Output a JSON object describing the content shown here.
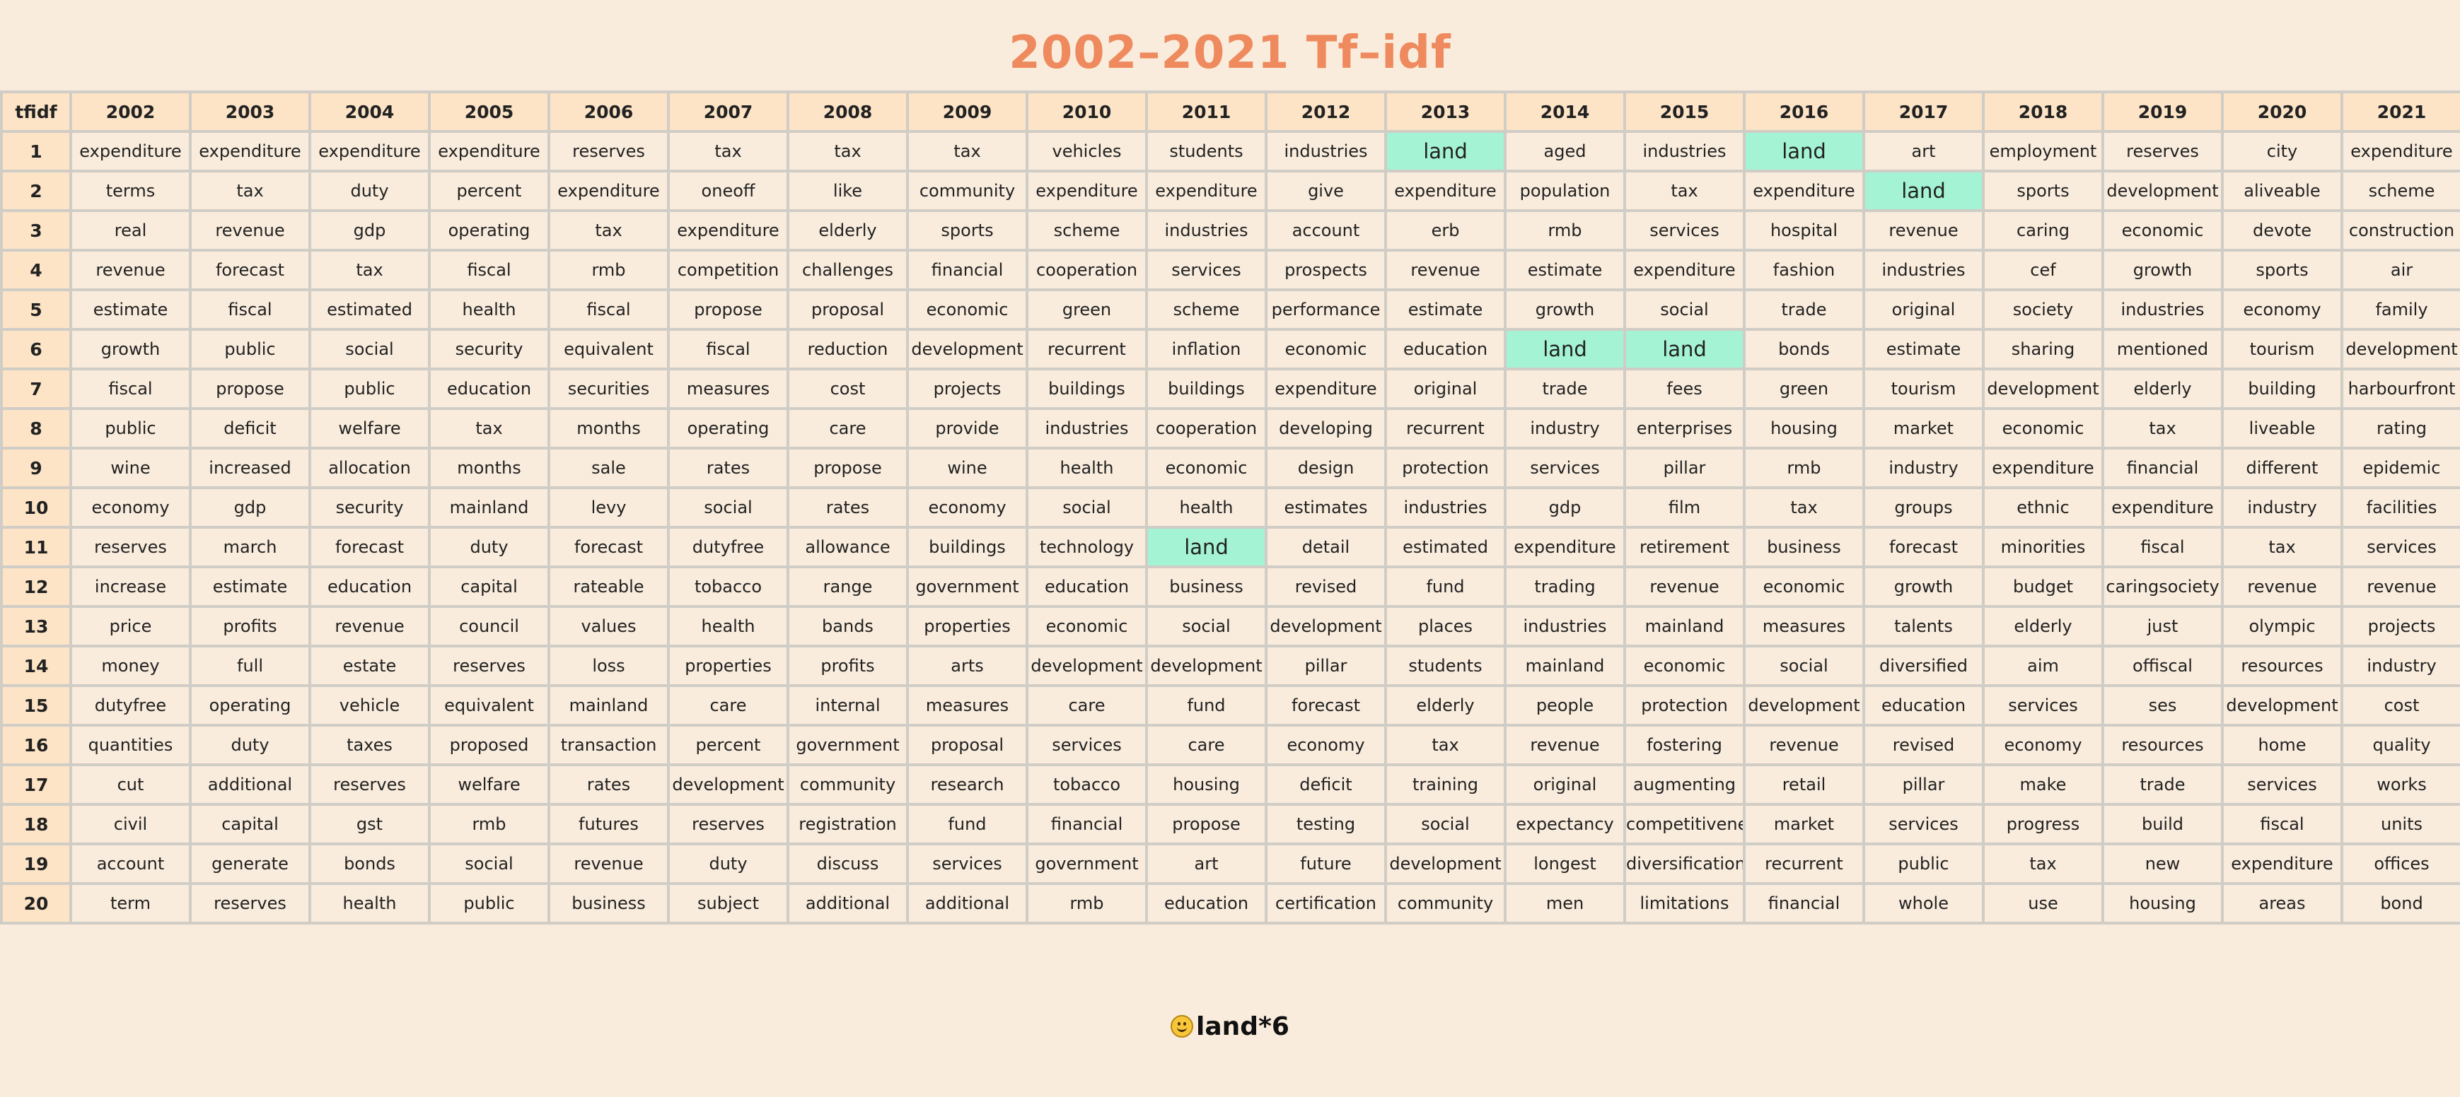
{
  "title": "2002–2021 Tf–idf",
  "table": {
    "corner_header": "tfidf",
    "years": [
      "2002",
      "2003",
      "2004",
      "2005",
      "2006",
      "2007",
      "2008",
      "2009",
      "2010",
      "2011",
      "2012",
      "2013",
      "2014",
      "2015",
      "2016",
      "2017",
      "2018",
      "2019",
      "2020",
      "2021"
    ],
    "highlight_word": "land",
    "highlight_color": "#a4f3d4",
    "rows": [
      {
        "rank": "1",
        "cells": [
          "expenditure",
          "expenditure",
          "expenditure",
          "expenditure",
          "reserves",
          "tax",
          "tax",
          "tax",
          "vehicles",
          "students",
          "industries",
          "land",
          "aged",
          "industries",
          "land",
          "art",
          "employment",
          "reserves",
          "city",
          "expenditure"
        ]
      },
      {
        "rank": "2",
        "cells": [
          "terms",
          "tax",
          "duty",
          "percent",
          "expenditure",
          "oneoff",
          "like",
          "community",
          "expenditure",
          "expenditure",
          "give",
          "expenditure",
          "population",
          "tax",
          "expenditure",
          "land",
          "sports",
          "development",
          "aliveable",
          "scheme"
        ]
      },
      {
        "rank": "3",
        "cells": [
          "real",
          "revenue",
          "gdp",
          "operating",
          "tax",
          "expenditure",
          "elderly",
          "sports",
          "scheme",
          "industries",
          "account",
          "erb",
          "rmb",
          "services",
          "hospital",
          "revenue",
          "caring",
          "economic",
          "devote",
          "construction"
        ]
      },
      {
        "rank": "4",
        "cells": [
          "revenue",
          "forecast",
          "tax",
          "fiscal",
          "rmb",
          "competition",
          "challenges",
          "financial",
          "cooperation",
          "services",
          "prospects",
          "revenue",
          "estimate",
          "expenditure",
          "fashion",
          "industries",
          "cef",
          "growth",
          "sports",
          "air"
        ]
      },
      {
        "rank": "5",
        "cells": [
          "estimate",
          "fiscal",
          "estimated",
          "health",
          "fiscal",
          "propose",
          "proposal",
          "economic",
          "green",
          "scheme",
          "performance",
          "estimate",
          "growth",
          "social",
          "trade",
          "original",
          "society",
          "industries",
          "economy",
          "family"
        ]
      },
      {
        "rank": "6",
        "cells": [
          "growth",
          "public",
          "social",
          "security",
          "equivalent",
          "fiscal",
          "reduction",
          "development",
          "recurrent",
          "inflation",
          "economic",
          "education",
          "land",
          "land",
          "bonds",
          "estimate",
          "sharing",
          "mentioned",
          "tourism",
          "development"
        ]
      },
      {
        "rank": "7",
        "cells": [
          "fiscal",
          "propose",
          "public",
          "education",
          "securities",
          "measures",
          "cost",
          "projects",
          "buildings",
          "buildings",
          "expenditure",
          "original",
          "trade",
          "fees",
          "green",
          "tourism",
          "development",
          "elderly",
          "building",
          "harbourfront"
        ]
      },
      {
        "rank": "8",
        "cells": [
          "public",
          "deficit",
          "welfare",
          "tax",
          "months",
          "operating",
          "care",
          "provide",
          "industries",
          "cooperation",
          "developing",
          "recurrent",
          "industry",
          "enterprises",
          "housing",
          "market",
          "economic",
          "tax",
          "liveable",
          "rating"
        ]
      },
      {
        "rank": "9",
        "cells": [
          "wine",
          "increased",
          "allocation",
          "months",
          "sale",
          "rates",
          "propose",
          "wine",
          "health",
          "economic",
          "design",
          "protection",
          "services",
          "pillar",
          "rmb",
          "industry",
          "expenditure",
          "financial",
          "different",
          "epidemic"
        ]
      },
      {
        "rank": "10",
        "cells": [
          "economy",
          "gdp",
          "security",
          "mainland",
          "levy",
          "social",
          "rates",
          "economy",
          "social",
          "health",
          "estimates",
          "industries",
          "gdp",
          "film",
          "tax",
          "groups",
          "ethnic",
          "expenditure",
          "industry",
          "facilities"
        ]
      },
      {
        "rank": "11",
        "cells": [
          "reserves",
          "march",
          "forecast",
          "duty",
          "forecast",
          "dutyfree",
          "allowance",
          "buildings",
          "technology",
          "land",
          "detail",
          "estimated",
          "expenditure",
          "retirement",
          "business",
          "forecast",
          "minorities",
          "fiscal",
          "tax",
          "services"
        ]
      },
      {
        "rank": "12",
        "cells": [
          "increase",
          "estimate",
          "education",
          "capital",
          "rateable",
          "tobacco",
          "range",
          "government",
          "education",
          "business",
          "revised",
          "fund",
          "trading",
          "revenue",
          "economic",
          "growth",
          "budget",
          "caringsociety",
          "revenue",
          "revenue"
        ]
      },
      {
        "rank": "13",
        "cells": [
          "price",
          "profits",
          "revenue",
          "council",
          "values",
          "health",
          "bands",
          "properties",
          "economic",
          "social",
          "development",
          "places",
          "industries",
          "mainland",
          "measures",
          "talents",
          "elderly",
          "just",
          "olympic",
          "projects"
        ]
      },
      {
        "rank": "14",
        "cells": [
          "money",
          "full",
          "estate",
          "reserves",
          "loss",
          "properties",
          "profits",
          "arts",
          "development",
          "development",
          "pillar",
          "students",
          "mainland",
          "economic",
          "social",
          "diversified",
          "aim",
          "offiscal",
          "resources",
          "industry"
        ]
      },
      {
        "rank": "15",
        "cells": [
          "dutyfree",
          "operating",
          "vehicle",
          "equivalent",
          "mainland",
          "care",
          "internal",
          "measures",
          "care",
          "fund",
          "forecast",
          "elderly",
          "people",
          "protection",
          "development",
          "education",
          "services",
          "ses",
          "development",
          "cost"
        ]
      },
      {
        "rank": "16",
        "cells": [
          "quantities",
          "duty",
          "taxes",
          "proposed",
          "transaction",
          "percent",
          "government",
          "proposal",
          "services",
          "care",
          "economy",
          "tax",
          "revenue",
          "fostering",
          "revenue",
          "revised",
          "economy",
          "resources",
          "home",
          "quality"
        ]
      },
      {
        "rank": "17",
        "cells": [
          "cut",
          "additional",
          "reserves",
          "welfare",
          "rates",
          "development",
          "community",
          "research",
          "tobacco",
          "housing",
          "deficit",
          "training",
          "original",
          "augmenting",
          "retail",
          "pillar",
          "make",
          "trade",
          "services",
          "works"
        ]
      },
      {
        "rank": "18",
        "cells": [
          "civil",
          "capital",
          "gst",
          "rmb",
          "futures",
          "reserves",
          "registration",
          "fund",
          "financial",
          "propose",
          "testing",
          "social",
          "expectancy",
          "competitivenes",
          "market",
          "services",
          "progress",
          "build",
          "fiscal",
          "units"
        ]
      },
      {
        "rank": "19",
        "cells": [
          "account",
          "generate",
          "bonds",
          "social",
          "revenue",
          "duty",
          "discuss",
          "services",
          "government",
          "art",
          "future",
          "development",
          "longest",
          "diversification",
          "recurrent",
          "public",
          "tax",
          "new",
          "expenditure",
          "offices"
        ]
      },
      {
        "rank": "20",
        "cells": [
          "term",
          "reserves",
          "health",
          "public",
          "business",
          "subject",
          "additional",
          "additional",
          "rmb",
          "education",
          "certification",
          "community",
          "men",
          "limitations",
          "financial",
          "whole",
          "use",
          "housing",
          "areas",
          "bond"
        ]
      }
    ]
  },
  "footer": {
    "emoji_icon": "smiling-face-icon",
    "text": "land*6"
  }
}
